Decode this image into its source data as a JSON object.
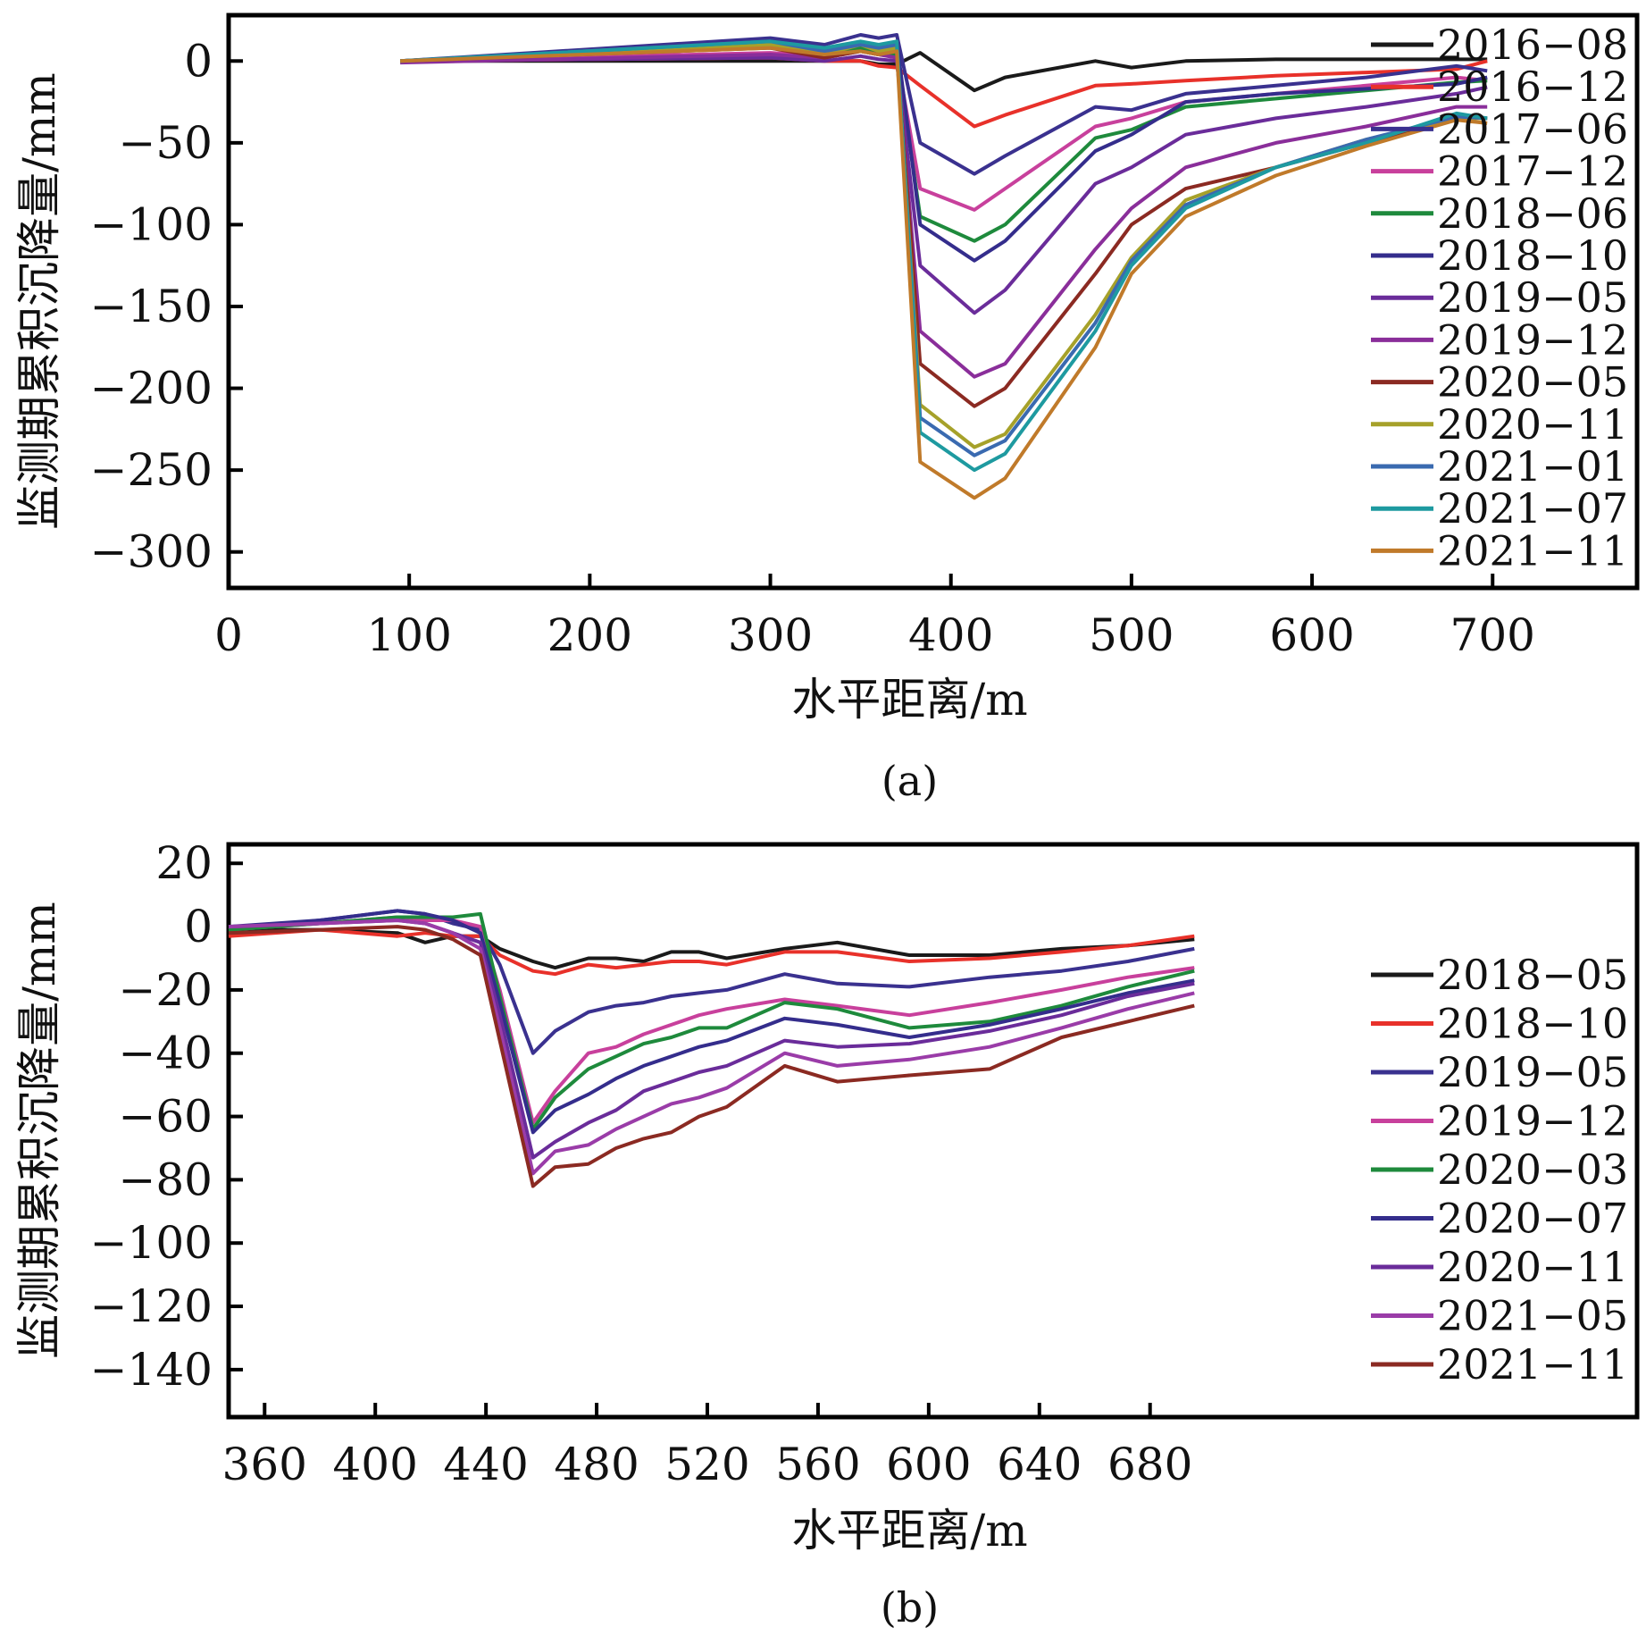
{
  "chart_data": [
    {
      "type": "line",
      "panel_label": "(a)",
      "xlabel": "水平距离/m",
      "ylabel": "监测期累积沉降量/mm",
      "xlim": [
        0,
        780
      ],
      "ylim": [
        -322,
        28
      ],
      "xticks": [
        0,
        100,
        200,
        300,
        400,
        500,
        600,
        700
      ],
      "xtick_labels": [
        "0",
        "100",
        "200",
        "300",
        "400",
        "500",
        "600",
        "700"
      ],
      "yticks": [
        0,
        -50,
        -100,
        -150,
        -200,
        -250,
        -300
      ],
      "ytick_labels": [
        "0",
        "−50",
        "−100",
        "−150",
        "−200",
        "−250",
        "−300"
      ],
      "legend_position": "right",
      "x": [
        95,
        300,
        330,
        350,
        360,
        370,
        383,
        413,
        430,
        480,
        500,
        530,
        580,
        630,
        680,
        697
      ],
      "series": [
        {
          "name": "2016−08",
          "color": "#1a1a1a",
          "values": [
            0,
            0,
            0,
            0,
            -2,
            -2,
            5,
            -18,
            -10,
            0,
            -4,
            0,
            1,
            1,
            1,
            1
          ]
        },
        {
          "name": "2016−12",
          "color": "#e8312a",
          "values": [
            0,
            2,
            0,
            0,
            -3,
            -4,
            -15,
            -40,
            -33,
            -15,
            -14,
            -12,
            -9,
            -7,
            -5,
            0
          ]
        },
        {
          "name": "2017−06",
          "color": "#3a318f",
          "values": [
            0,
            14,
            10,
            16,
            14,
            16,
            -50,
            -69,
            -58,
            -28,
            -30,
            -20,
            -15,
            -10,
            -3,
            -6
          ]
        },
        {
          "name": "2017−12",
          "color": "#c8409c",
          "values": [
            0,
            5,
            3,
            6,
            4,
            3,
            -78,
            -91,
            -78,
            -40,
            -35,
            -25,
            -20,
            -15,
            -10,
            -12
          ]
        },
        {
          "name": "2018−06",
          "color": "#1e8a3c",
          "values": [
            0,
            10,
            4,
            8,
            6,
            4,
            -95,
            -110,
            -100,
            -47,
            -42,
            -28,
            -23,
            -18,
            -13,
            -12
          ]
        },
        {
          "name": "2018−10",
          "color": "#342d8c",
          "values": [
            0,
            12,
            6,
            10,
            8,
            12,
            -100,
            -122,
            -110,
            -55,
            -45,
            -25,
            -20,
            -17,
            -14,
            -10
          ]
        },
        {
          "name": "2019−05",
          "color": "#6a2c9a",
          "values": [
            0,
            2,
            0,
            3,
            1,
            0,
            -125,
            -154,
            -140,
            -75,
            -65,
            -45,
            -35,
            -28,
            -20,
            -16
          ]
        },
        {
          "name": "2019−12",
          "color": "#8a2e9a",
          "values": [
            -1,
            4,
            2,
            6,
            4,
            2,
            -165,
            -193,
            -185,
            -115,
            -90,
            -65,
            -50,
            -40,
            -28,
            -28
          ]
        },
        {
          "name": "2020−05",
          "color": "#8b2a22",
          "values": [
            0,
            8,
            2,
            6,
            4,
            6,
            -185,
            -211,
            -200,
            -130,
            -100,
            -78,
            -65,
            -50,
            -35,
            -35
          ]
        },
        {
          "name": "2020−11",
          "color": "#a6a12a",
          "values": [
            0,
            10,
            4,
            10,
            6,
            8,
            -210,
            -236,
            -228,
            -155,
            -120,
            -85,
            -65,
            -48,
            -35,
            -35
          ]
        },
        {
          "name": "2021−01",
          "color": "#3a6ab0",
          "values": [
            0,
            12,
            6,
            10,
            8,
            10,
            -218,
            -241,
            -232,
            -160,
            -122,
            -88,
            -65,
            -48,
            -34,
            -35
          ]
        },
        {
          "name": "2021−07",
          "color": "#1e9aa0",
          "values": [
            0,
            12,
            8,
            12,
            10,
            12,
            -227,
            -250,
            -240,
            -165,
            -125,
            -90,
            -65,
            -50,
            -32,
            -35
          ]
        },
        {
          "name": "2021−11",
          "color": "#c07a2a",
          "values": [
            0,
            8,
            4,
            6,
            4,
            6,
            -245,
            -267,
            -255,
            -175,
            -130,
            -95,
            -70,
            -52,
            -36,
            -38
          ]
        }
      ]
    },
    {
      "type": "line",
      "panel_label": "(b)",
      "xlabel": "水平距离/m",
      "ylabel": "监测期累积沉降量/mm",
      "xlim": [
        347,
        856
      ],
      "ylim": [
        -155,
        26
      ],
      "xticks": [
        360,
        400,
        440,
        480,
        520,
        560,
        600,
        640,
        680
      ],
      "xtick_labels": [
        "360",
        "400",
        "440",
        "480",
        "520",
        "560",
        "600",
        "640",
        "680"
      ],
      "yticks": [
        20,
        0,
        -20,
        -40,
        -60,
        -80,
        -100,
        -120,
        -140
      ],
      "ytick_labels": [
        "20",
        "0",
        "−20",
        "−40",
        "−60",
        "−80",
        "−100",
        "−120",
        "−140"
      ],
      "legend_position": "right",
      "x": [
        347,
        380,
        408,
        418,
        428,
        438,
        445,
        457,
        465,
        477,
        487,
        497,
        507,
        517,
        527,
        548,
        567,
        593,
        622,
        648,
        672,
        696
      ],
      "series": [
        {
          "name": "2018−05",
          "color": "#1a1a1a",
          "values": [
            -1,
            -1,
            -2,
            -5,
            -3,
            -3,
            -7,
            -11,
            -13,
            -10,
            -10,
            -11,
            -8,
            -8,
            -10,
            -7,
            -5,
            -9,
            -9,
            -7,
            -6,
            -4
          ]
        },
        {
          "name": "2018−10",
          "color": "#e8312a",
          "values": [
            -3,
            -1,
            -3,
            -2,
            -3,
            -3,
            -9,
            -14,
            -15,
            -12,
            -13,
            -12,
            -11,
            -11,
            -12,
            -8,
            -8,
            -11,
            -10,
            -8,
            -6,
            -3
          ]
        },
        {
          "name": "2019−05",
          "color": "#3a318f",
          "values": [
            -1,
            2,
            5,
            4,
            1,
            -1,
            -12,
            -40,
            -33,
            -27,
            -25,
            -24,
            -22,
            -21,
            -20,
            -15,
            -18,
            -19,
            -16,
            -14,
            -11,
            -7
          ]
        },
        {
          "name": "2019−12",
          "color": "#c8409c",
          "values": [
            -1,
            1,
            3,
            2,
            2,
            0,
            -20,
            -62,
            -52,
            -40,
            -38,
            -34,
            -31,
            -28,
            -26,
            -23,
            -25,
            -28,
            -24,
            -20,
            -16,
            -13
          ]
        },
        {
          "name": "2020−03",
          "color": "#1e8a3c",
          "values": [
            -1,
            1,
            3,
            3,
            3,
            4,
            -22,
            -64,
            -54,
            -45,
            -41,
            -37,
            -35,
            -32,
            -32,
            -24,
            -26,
            -32,
            -30,
            -25,
            -19,
            -14
          ]
        },
        {
          "name": "2020−07",
          "color": "#342d8c",
          "values": [
            0,
            2,
            5,
            4,
            2,
            -2,
            -24,
            -65,
            -58,
            -53,
            -48,
            -44,
            -41,
            -38,
            -36,
            -29,
            -31,
            -35,
            -31,
            -26,
            -21,
            -17
          ]
        },
        {
          "name": "2020−11",
          "color": "#6a2c9a",
          "values": [
            0,
            1,
            2,
            1,
            -2,
            -5,
            -28,
            -73,
            -68,
            -62,
            -58,
            -52,
            -49,
            -46,
            -44,
            -36,
            -38,
            -37,
            -33,
            -28,
            -22,
            -18
          ]
        },
        {
          "name": "2021−05",
          "color": "#9a3ca8",
          "values": [
            0,
            1,
            2,
            1,
            -2,
            -7,
            -32,
            -78,
            -71,
            -69,
            -64,
            -60,
            -56,
            -54,
            -51,
            -40,
            -44,
            -42,
            -38,
            -32,
            -26,
            -21
          ]
        },
        {
          "name": "2021−11",
          "color": "#8b2a22",
          "values": [
            -2,
            -1,
            0,
            -1,
            -4,
            -9,
            -36,
            -82,
            -76,
            -75,
            -70,
            -67,
            -65,
            -60,
            -57,
            -44,
            -49,
            -47,
            -45,
            -35,
            -30,
            -25
          ]
        }
      ]
    }
  ]
}
